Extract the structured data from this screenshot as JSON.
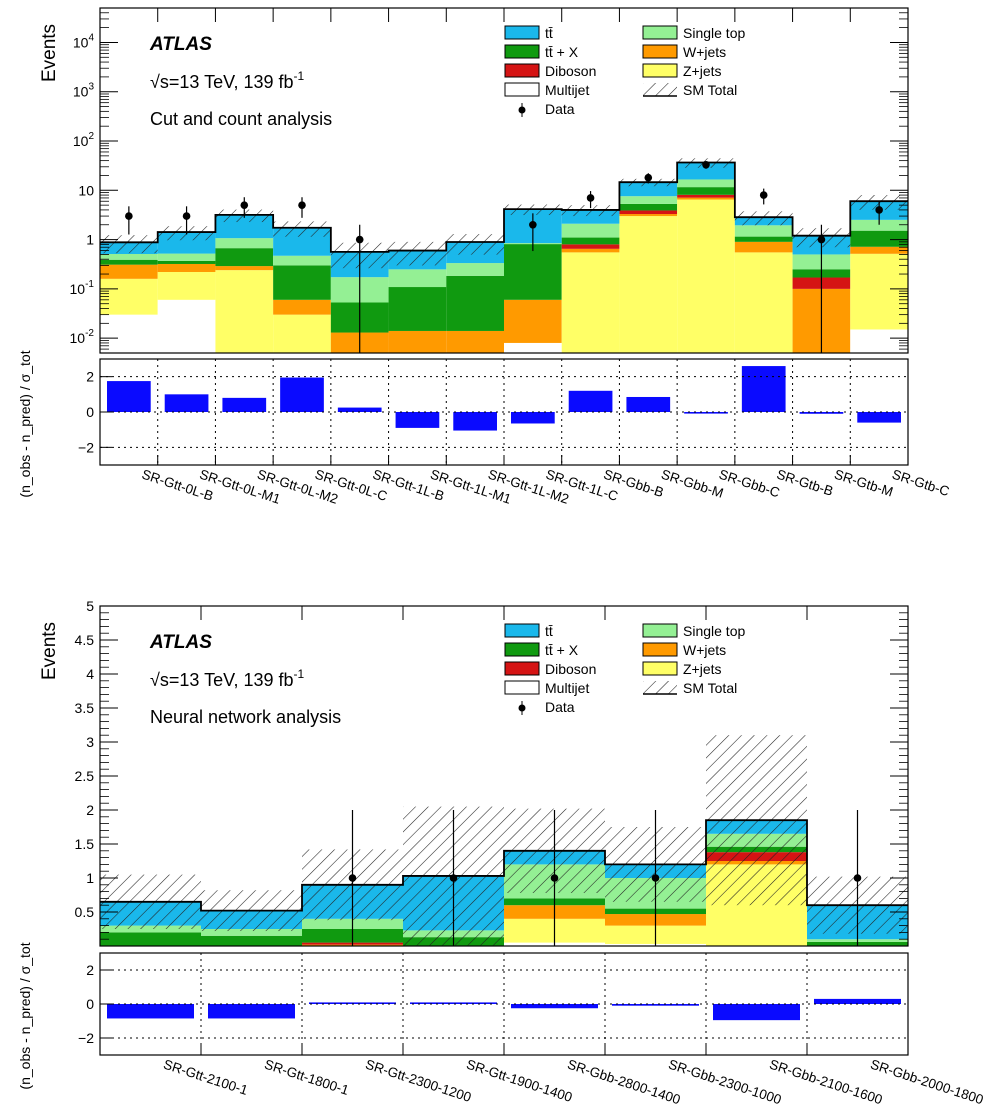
{
  "figure": {
    "atlas_label": "ATLAS"
  },
  "colors": {
    "ttbar": "#1ab8eb",
    "ttX": "#109a10",
    "diboson": "#d51414",
    "multijet": "#ffffff",
    "singletop": "#94f094",
    "wjets": "#ff9a00",
    "zjets": "#ffff66",
    "pull": "#0a0aff"
  },
  "legend": {
    "left": [
      {
        "key": "ttbar",
        "label": "tt̄"
      },
      {
        "key": "ttX",
        "label": "tt̄ + X"
      },
      {
        "key": "diboson",
        "label": "Diboson"
      },
      {
        "key": "multijet",
        "label": "Multijet"
      },
      {
        "key": "data",
        "label": "Data"
      }
    ],
    "right": [
      {
        "key": "singletop",
        "label": "Single top"
      },
      {
        "key": "wjets",
        "label": "W+jets"
      },
      {
        "key": "zjets",
        "label": "Z+jets"
      },
      {
        "key": "smtotal",
        "label": "SM Total"
      }
    ]
  },
  "chart_data": [
    {
      "type": "bar",
      "stacked": true,
      "yscale": "log",
      "ylim": [
        0.005,
        50000
      ],
      "yticks": [
        {
          "v": 0.01,
          "label": "10",
          "exp": "-2"
        },
        {
          "v": 0.1,
          "label": "10",
          "exp": "-1"
        },
        {
          "v": 1,
          "label": "1",
          "exp": ""
        },
        {
          "v": 10,
          "label": "10",
          "exp": ""
        },
        {
          "v": 100,
          "label": "10",
          "exp": "2"
        },
        {
          "v": 1000,
          "label": "10",
          "exp": "3"
        },
        {
          "v": 10000,
          "label": "10",
          "exp": "4"
        }
      ],
      "ylabel": "Events",
      "energy_label": "√s=13 TeV, 139 fb",
      "lumi_exp": "-1",
      "analysis_label": "Cut and count analysis",
      "categories": [
        "SR-Gtt-0L-B",
        "SR-Gtt-0L-M1",
        "SR-Gtt-0L-M2",
        "SR-Gtt-0L-C",
        "SR-Gtt-1L-B",
        "SR-Gtt-1L-M1",
        "SR-Gtt-1L-M2",
        "SR-Gtt-1L-C",
        "SR-Gbb-B",
        "SR-Gbb-M",
        "SR-Gbb-C",
        "SR-Gtb-B",
        "SR-Gtb-M",
        "SR-Gtb-C"
      ],
      "series": [
        {
          "key": "multijet",
          "name": "Multijet",
          "values": [
            0.03,
            0.06,
            0,
            0,
            0,
            0,
            0,
            0.008,
            0,
            0,
            0,
            0,
            0,
            0.015
          ]
        },
        {
          "key": "zjets",
          "name": "Z+jets",
          "values": [
            0.13,
            0.16,
            0.24,
            0.03,
            0,
            0,
            0,
            0,
            0.55,
            3.0,
            6.5,
            0.55,
            0,
            0.5
          ]
        },
        {
          "key": "wjets",
          "name": "W+jets",
          "values": [
            0.15,
            0.1,
            0.05,
            0.03,
            0.013,
            0.014,
            0.014,
            0.052,
            0.1,
            0.3,
            0.6,
            0.35,
            0.1,
            0.2
          ]
        },
        {
          "key": "diboson",
          "name": "Diboson",
          "values": [
            0,
            0,
            0,
            0,
            0,
            0,
            0,
            0,
            0.15,
            0.6,
            1.0,
            0,
            0.07,
            0
          ]
        },
        {
          "key": "ttX",
          "name": "tt̄ + X",
          "values": [
            0.08,
            0.05,
            0.38,
            0.24,
            0.04,
            0.095,
            0.17,
            0.75,
            0.3,
            1.4,
            3.5,
            0.25,
            0.08,
            0.8
          ]
        },
        {
          "key": "singletop",
          "name": "Single top",
          "values": [
            0.12,
            0.15,
            0.4,
            0.17,
            0.12,
            0.14,
            0.15,
            0.04,
            1.0,
            2.3,
            5.0,
            0.8,
            0.25,
            1.0
          ]
        },
        {
          "key": "ttbar",
          "name": "tt̄",
          "values": [
            0.37,
            0.9,
            2.1,
            1.27,
            0.39,
            0.35,
            0.56,
            3.3,
            1.9,
            7.0,
            20.0,
            0.9,
            0.7,
            3.5
          ]
        }
      ],
      "sm_uncertainty": [
        0.35,
        0.45,
        0.9,
        0.6,
        0.3,
        0.3,
        0.4,
        1.0,
        1.0,
        2.5,
        8.0,
        0.9,
        0.5,
        2.0
      ],
      "data": {
        "name": "Data",
        "values": [
          3,
          3,
          5,
          5,
          1,
          null,
          null,
          2,
          7,
          18,
          33,
          8,
          1,
          4
        ]
      },
      "ratio": {
        "ylabel": "(n_obs - n_pred) / σ_tot",
        "ylim": [
          -3,
          3
        ],
        "yticks": [
          -2,
          0,
          2
        ],
        "values": [
          1.75,
          1.0,
          0.8,
          1.95,
          0.25,
          -0.9,
          -1.05,
          -0.65,
          1.2,
          0.85,
          -0.07,
          2.6,
          -0.1,
          -0.6
        ]
      }
    },
    {
      "type": "bar",
      "stacked": true,
      "yscale": "linear",
      "ylim": [
        0,
        5
      ],
      "yticks": [
        {
          "v": 0.5,
          "label": "0.5"
        },
        {
          "v": 1,
          "label": "1"
        },
        {
          "v": 1.5,
          "label": "1.5"
        },
        {
          "v": 2,
          "label": "2"
        },
        {
          "v": 2.5,
          "label": "2.5"
        },
        {
          "v": 3,
          "label": "3"
        },
        {
          "v": 3.5,
          "label": "3.5"
        },
        {
          "v": 4,
          "label": "4"
        },
        {
          "v": 4.5,
          "label": "4.5"
        },
        {
          "v": 5,
          "label": "5"
        }
      ],
      "ylabel": "Events",
      "energy_label": "√s=13 TeV, 139 fb",
      "lumi_exp": "-1",
      "analysis_label": "Neural network analysis",
      "categories": [
        "SR-Gtt-2100-1",
        "SR-Gtt-1800-1",
        "SR-Gtt-2300-1200",
        "SR-Gtt-1900-1400",
        "SR-Gbb-2800-1400",
        "SR-Gbb-2300-1000",
        "SR-Gbb-2100-1600",
        "SR-Gbb-2000-1800"
      ],
      "series": [
        {
          "key": "multijet",
          "name": "Multijet",
          "values": [
            0,
            0,
            0,
            0,
            0.05,
            0.03,
            0,
            0
          ]
        },
        {
          "key": "zjets",
          "name": "Z+jets",
          "values": [
            0,
            0,
            0,
            0,
            0.35,
            0.27,
            1.2,
            0
          ]
        },
        {
          "key": "wjets",
          "name": "W+jets",
          "values": [
            0,
            0,
            0.02,
            0,
            0.2,
            0.17,
            0.05,
            0
          ]
        },
        {
          "key": "diboson",
          "name": "Diboson",
          "values": [
            0,
            0,
            0.03,
            0,
            0,
            0,
            0.13,
            0
          ]
        },
        {
          "key": "ttX",
          "name": "tt̄ + X",
          "values": [
            0.2,
            0.15,
            0.2,
            0.13,
            0.1,
            0.08,
            0.08,
            0.06
          ]
        },
        {
          "key": "singletop",
          "name": "Single top",
          "values": [
            0.1,
            0.1,
            0.15,
            0.1,
            0.5,
            0.45,
            0.19,
            0.04
          ]
        },
        {
          "key": "ttbar",
          "name": "tt̄",
          "values": [
            0.35,
            0.27,
            0.5,
            0.8,
            0.2,
            0.2,
            0.2,
            0.5
          ]
        }
      ],
      "sm_uncertainty": [
        0.4,
        0.3,
        0.52,
        1.02,
        0.62,
        0.55,
        1.25,
        0.42
      ],
      "data": {
        "name": "Data",
        "values": [
          0,
          0,
          1,
          1,
          1,
          1,
          0,
          1
        ]
      },
      "ratio": {
        "ylabel": "(n_obs - n_pred) / σ_tot",
        "ylim": [
          -3,
          3
        ],
        "yticks": [
          -2,
          0,
          2
        ],
        "values": [
          -0.85,
          -0.85,
          0.05,
          0,
          -0.25,
          -0.1,
          -0.95,
          0.3
        ]
      }
    }
  ]
}
